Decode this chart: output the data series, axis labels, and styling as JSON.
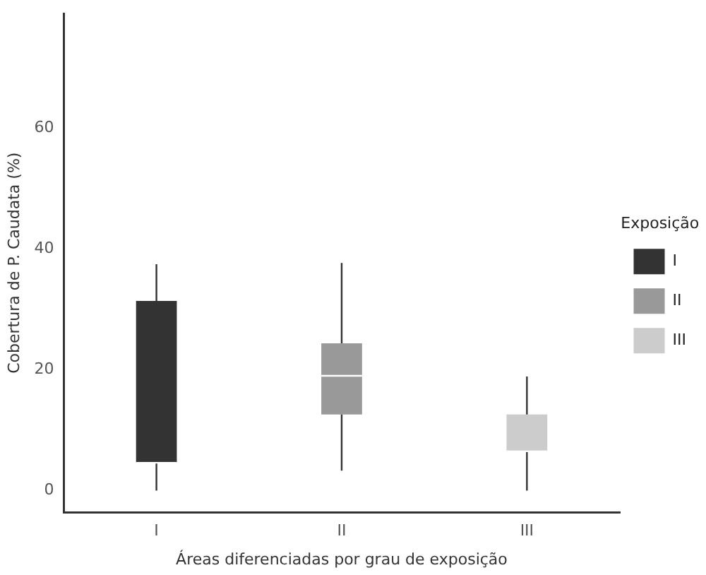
{
  "chart_data": {
    "type": "box",
    "xlabel": "Áreas diferenciadas por grau de exposição",
    "ylabel": "Cobertura de P. Caudata (%)",
    "legend_title": "Exposição",
    "legend": "right",
    "grid": false,
    "categories": [
      "I",
      "II",
      "III"
    ],
    "series": [
      {
        "name": "I",
        "color": "#333333",
        "boxes": [
          {
            "low": 0,
            "q1": 4.6,
            "median": 4.6,
            "q3": 31.4,
            "high": 37.5
          },
          null,
          null
        ]
      },
      {
        "name": "II",
        "color": "#999999",
        "boxes": [
          null,
          {
            "low": 3.3,
            "q1": 12.6,
            "median": 19.0,
            "q3": 24.4,
            "high": 37.7
          },
          null
        ]
      },
      {
        "name": "III",
        "color": "#cccccc",
        "boxes": [
          null,
          null,
          {
            "low": 0,
            "q1": 6.5,
            "median": 6.5,
            "q3": 12.6,
            "high": 18.9
          }
        ]
      }
    ],
    "ylim": [
      -3.6,
      79
    ],
    "yticks": [
      0,
      20,
      40,
      60
    ]
  }
}
